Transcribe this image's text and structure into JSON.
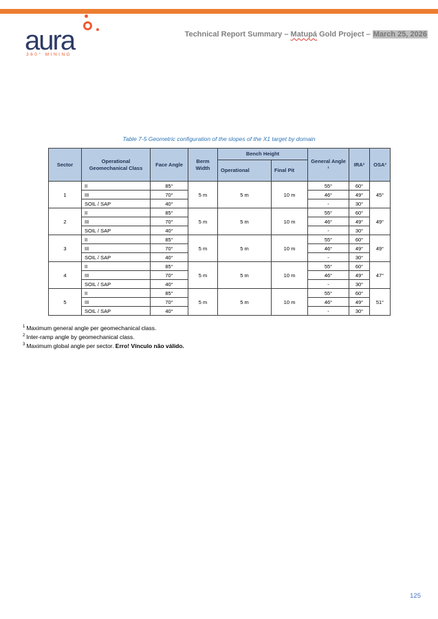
{
  "colors": {
    "accent_orange": "#ED7D31",
    "logo_orange": "#EE5B2F",
    "logo_navy": "#2D3A66",
    "header_fill": "#B8CCE4",
    "caption_blue": "#2E74B5",
    "pagenum_blue": "#4472C4"
  },
  "logo": {
    "name": "aura",
    "tagline": "360° MINING"
  },
  "header": {
    "part1": "Technical Report Summary – ",
    "project": "Matupá",
    "part2": " Gold Project – ",
    "date": "March 25, 2026"
  },
  "table": {
    "caption": "Table 7-5 Geometric configuration of the slopes of the X1 target by domain",
    "headers": {
      "sector": "Sector",
      "geomech_class": "Operational Geomechanical Class",
      "face_angle": "Face Angle",
      "berm_width": "Berm Width",
      "bench_height": "Bench Height",
      "operational": "Operational",
      "final_pit": "Final Pit",
      "general_angle": "General Angle ¹",
      "ira": "IRA²",
      "osa": "OSA³"
    },
    "sectors": [
      {
        "sector": "1",
        "berm_width": "5 m",
        "operational": "5 m",
        "final_pit": "10 m",
        "osa": "45°",
        "rows": [
          {
            "class": "II",
            "face_angle": "85°",
            "general_angle": "55°",
            "ira": "60°"
          },
          {
            "class": "III",
            "face_angle": "70°",
            "general_angle": "46°",
            "ira": "49°"
          },
          {
            "class": "SOIL / SAP",
            "face_angle": "40°",
            "general_angle": "-",
            "ira": "30°"
          }
        ]
      },
      {
        "sector": "2",
        "berm_width": "5 m",
        "operational": "5 m",
        "final_pit": "10 m",
        "osa": "49°",
        "rows": [
          {
            "class": "II",
            "face_angle": "85°",
            "general_angle": "55°",
            "ira": "60°"
          },
          {
            "class": "III",
            "face_angle": "70°",
            "general_angle": "46°",
            "ira": "49°"
          },
          {
            "class": "SOIL / SAP",
            "face_angle": "40°",
            "general_angle": "-",
            "ira": "30°"
          }
        ]
      },
      {
        "sector": "3",
        "berm_width": "5 m",
        "operational": "5 m",
        "final_pit": "10 m",
        "osa": "49°",
        "rows": [
          {
            "class": "II",
            "face_angle": "85°",
            "general_angle": "55°",
            "ira": "60°"
          },
          {
            "class": "III",
            "face_angle": "70°",
            "general_angle": "46°",
            "ira": "49°"
          },
          {
            "class": "SOIL / SAP",
            "face_angle": "40°",
            "general_angle": "-",
            "ira": "30°"
          }
        ]
      },
      {
        "sector": "4",
        "berm_width": "5 m",
        "operational": "5 m",
        "final_pit": "10 m",
        "osa": "47°",
        "rows": [
          {
            "class": "II",
            "face_angle": "85°",
            "general_angle": "55°",
            "ira": "60°"
          },
          {
            "class": "III",
            "face_angle": "70°",
            "general_angle": "46°",
            "ira": "49°"
          },
          {
            "class": "SOIL / SAP",
            "face_angle": "40°",
            "general_angle": "-",
            "ira": "30°"
          }
        ]
      },
      {
        "sector": "5",
        "berm_width": "5 m",
        "operational": "5 m",
        "final_pit": "10 m",
        "osa": "51°",
        "rows": [
          {
            "class": "II",
            "face_angle": "85°",
            "general_angle": "55°",
            "ira": "60°"
          },
          {
            "class": "III",
            "face_angle": "70°",
            "general_angle": "46°",
            "ira": "49°"
          },
          {
            "class": "SOIL / SAP",
            "face_angle": "40°",
            "general_angle": "-",
            "ira": "30°"
          }
        ]
      }
    ]
  },
  "footnotes": [
    {
      "sup": "1",
      "text": "Maximum general angle per geomechanical class.",
      "bold": ""
    },
    {
      "sup": "2",
      "text": "Inter-ramp angle by geomechanical class.",
      "bold": ""
    },
    {
      "sup": "3",
      "text": "Maximum global angle per sector. ",
      "bold": "Erro! Vínculo não válido."
    }
  ],
  "page_number": "125"
}
